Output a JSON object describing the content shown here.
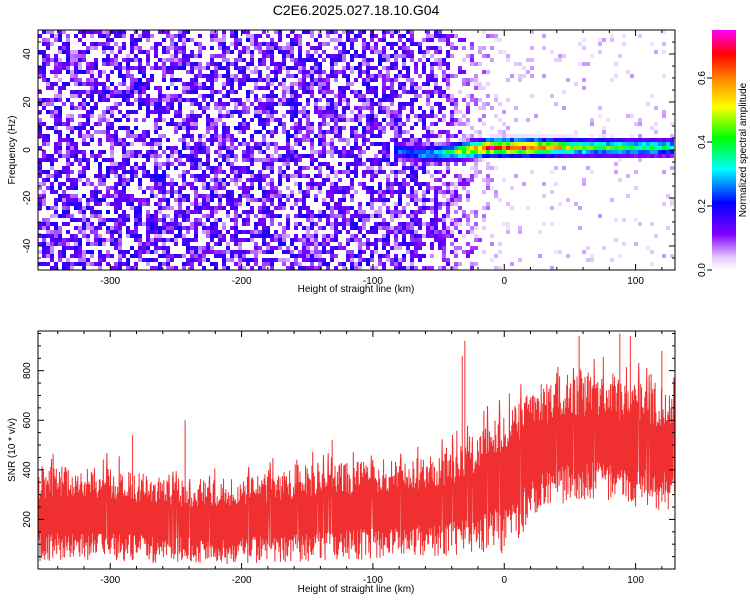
{
  "figure": {
    "title": "C2E6.2025.027.18.10.G04"
  },
  "chart_data": [
    {
      "type": "heatmap",
      "title": "C2E6.2025.027.18.10.G04",
      "xlabel": "Height of straight line (km)",
      "ylabel": "Frequency (Hz)",
      "xlim": [
        -355,
        130
      ],
      "ylim": [
        -50,
        50
      ],
      "x_ticks": [
        -300,
        -200,
        -100,
        0,
        100
      ],
      "y_ticks": [
        -40,
        -20,
        0,
        20,
        40
      ],
      "colorbar": {
        "label": "Normalized spectral amplitude",
        "range": [
          0.0,
          0.75
        ],
        "ticks": [
          0.0,
          0.2,
          0.4,
          0.6
        ]
      },
      "background_noise": {
        "x_range": [
          -355,
          -40
        ],
        "amplitude_range": [
          0.05,
          0.2
        ],
        "fade_x_range": [
          -60,
          10
        ]
      },
      "signal_ridge": [
        {
          "x": -85,
          "frequency": 0,
          "amplitude": 0.25
        },
        {
          "x": -60,
          "frequency": -2,
          "amplitude": 0.3
        },
        {
          "x": -40,
          "frequency": -1,
          "amplitude": 0.4
        },
        {
          "x": -25,
          "frequency": 0,
          "amplitude": 0.6
        },
        {
          "x": -10,
          "frequency": 1,
          "amplitude": 0.7
        },
        {
          "x": 0,
          "frequency": 1,
          "amplitude": 0.7
        },
        {
          "x": 20,
          "frequency": 1,
          "amplitude": 0.68
        },
        {
          "x": 60,
          "frequency": 1,
          "amplitude": 0.45
        },
        {
          "x": 100,
          "frequency": 1,
          "amplitude": 0.4
        },
        {
          "x": 130,
          "frequency": 1,
          "amplitude": 0.38
        }
      ],
      "signal_band_width_hz": 5,
      "grid": false
    },
    {
      "type": "line",
      "xlabel": "Height of straight line (km)",
      "ylabel": "SNR (10 * v/v)",
      "xlim": [
        -355,
        130
      ],
      "ylim": [
        0,
        960
      ],
      "x_ticks": [
        -300,
        -200,
        -100,
        0,
        100
      ],
      "y_ticks": [
        200,
        400,
        600,
        800
      ],
      "series": [
        {
          "color": "#f03030",
          "envelope": [
            {
              "x": -355,
              "low": 30,
              "mid": 210,
              "high": 420
            },
            {
              "x": -300,
              "low": 30,
              "mid": 210,
              "high": 410
            },
            {
              "x": -250,
              "low": 20,
              "mid": 190,
              "high": 360
            },
            {
              "x": -200,
              "low": 20,
              "mid": 190,
              "high": 370
            },
            {
              "x": -150,
              "low": 30,
              "mid": 220,
              "high": 420
            },
            {
              "x": -100,
              "low": 40,
              "mid": 230,
              "high": 440
            },
            {
              "x": -50,
              "low": 50,
              "mid": 260,
              "high": 460
            },
            {
              "x": -25,
              "low": 50,
              "mid": 280,
              "high": 520
            },
            {
              "x": 0,
              "low": 60,
              "mid": 380,
              "high": 650
            },
            {
              "x": 25,
              "low": 200,
              "mid": 480,
              "high": 730
            },
            {
              "x": 50,
              "low": 260,
              "mid": 520,
              "high": 790
            },
            {
              "x": 75,
              "low": 280,
              "mid": 520,
              "high": 780
            },
            {
              "x": 100,
              "low": 250,
              "mid": 500,
              "high": 760
            },
            {
              "x": 130,
              "low": 230,
              "mid": 470,
              "high": 720
            }
          ],
          "spikes": [
            {
              "x": -243,
              "y": 600
            },
            {
              "x": -283,
              "y": 540
            },
            {
              "x": -131,
              "y": 520
            },
            {
              "x": -32,
              "y": 860
            },
            {
              "x": -30,
              "y": 920
            },
            {
              "x": 57,
              "y": 940
            },
            {
              "x": 88,
              "y": 950
            },
            {
              "x": 96,
              "y": 940
            },
            {
              "x": 120,
              "y": 880
            }
          ]
        }
      ],
      "grid": false
    }
  ]
}
